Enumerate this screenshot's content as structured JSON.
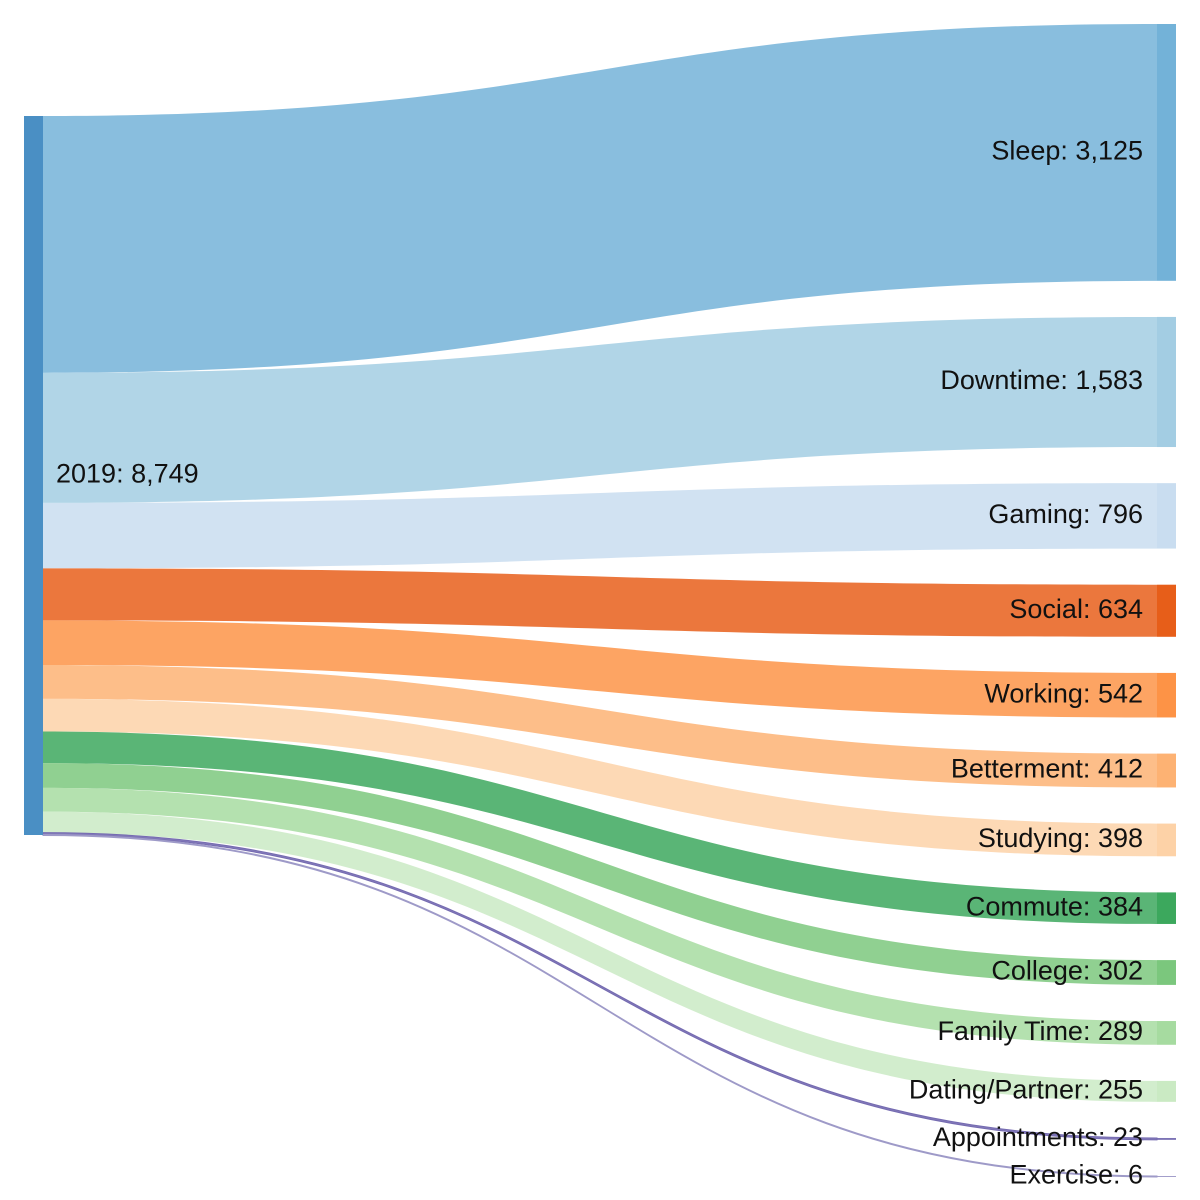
{
  "chart_data": {
    "type": "sankey",
    "source": {
      "label": "2019",
      "value": 8749,
      "color": "#4a8fc4"
    },
    "targets": [
      {
        "label": "Sleep",
        "value": 3125,
        "color": "#6baed6"
      },
      {
        "label": "Downtime",
        "value": 1583,
        "color": "#9ecae1"
      },
      {
        "label": "Gaming",
        "value": 796,
        "color": "#c6dbef"
      },
      {
        "label": "Social",
        "value": 634,
        "color": "#e6550d"
      },
      {
        "label": "Working",
        "value": 542,
        "color": "#fd8d3c"
      },
      {
        "label": "Betterment",
        "value": 412,
        "color": "#fdae6b"
      },
      {
        "label": "Studying",
        "value": 398,
        "color": "#fdd0a2"
      },
      {
        "label": "Commute",
        "value": 384,
        "color": "#31a354"
      },
      {
        "label": "College",
        "value": 302,
        "color": "#74c476"
      },
      {
        "label": "Family Time",
        "value": 289,
        "color": "#a1d99b"
      },
      {
        "label": "Dating/Partner",
        "value": 255,
        "color": "#c7e9c0"
      },
      {
        "label": "Appointments",
        "value": 23,
        "color": "#756bb1"
      },
      {
        "label": "Exercise",
        "value": 6,
        "color": "#9e9ac8"
      }
    ]
  }
}
